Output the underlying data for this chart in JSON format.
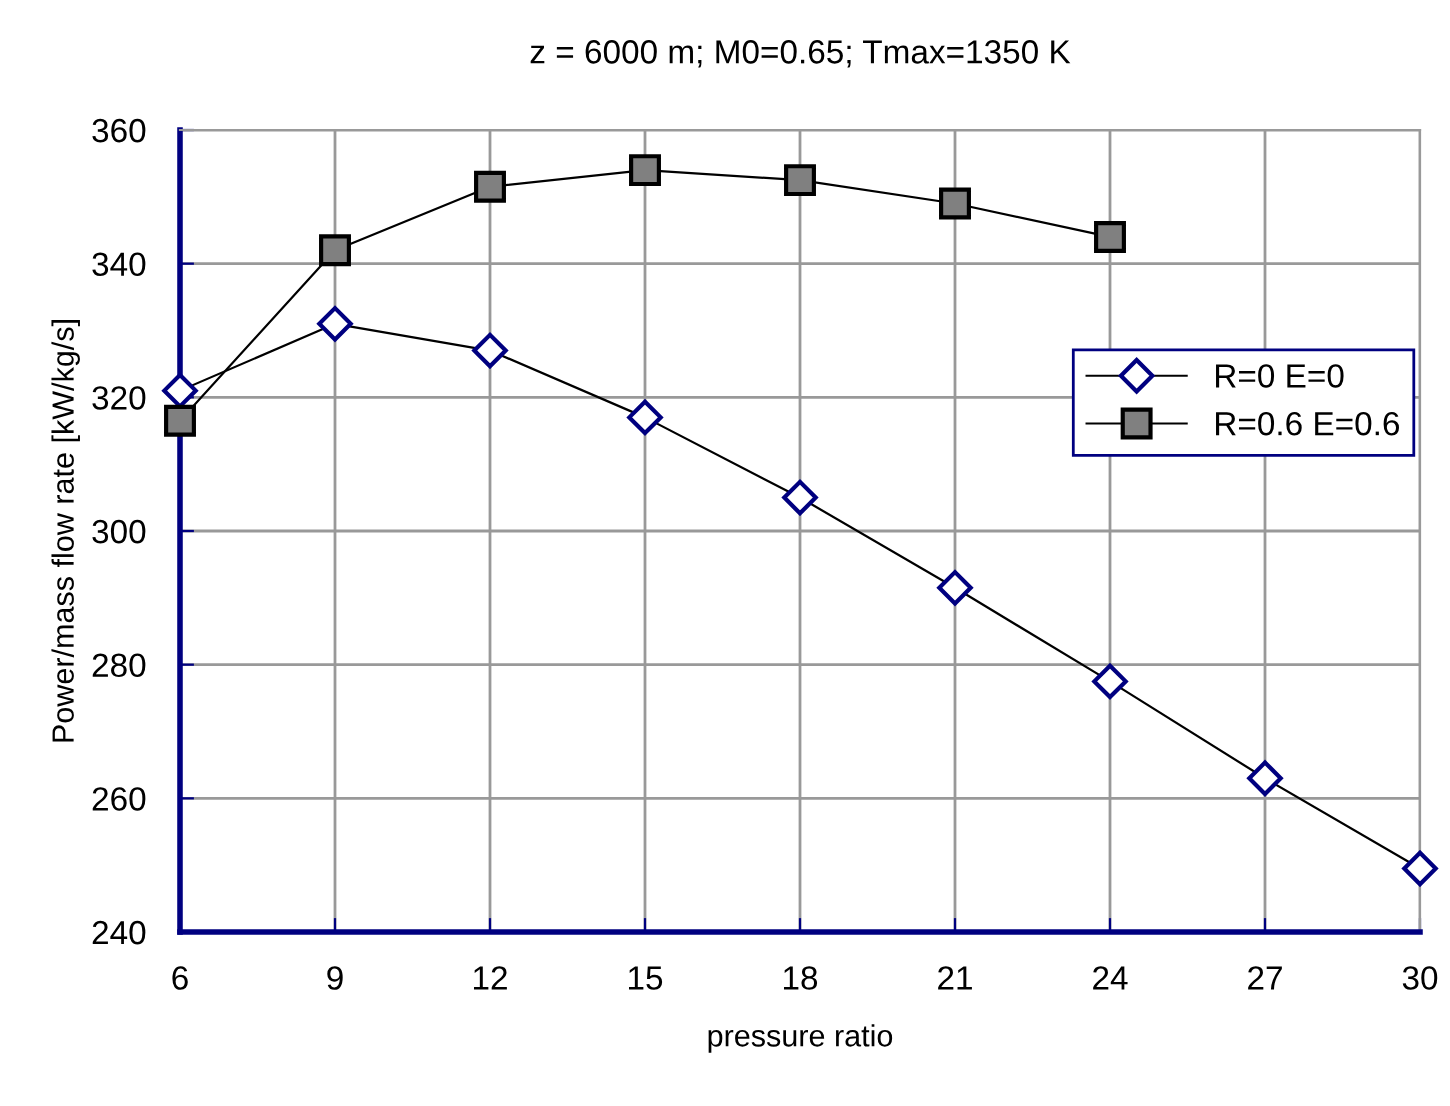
{
  "chart_data": {
    "type": "line",
    "title": "z = 6000 m; M0=0.65; Tmax=1350 K",
    "xlabel": "pressure ratio",
    "ylabel": "Power/mass flow rate [kW/kg/s]",
    "x": [
      6,
      9,
      12,
      15,
      18,
      21,
      24,
      27,
      30
    ],
    "series": [
      {
        "name": "R=0 E=0",
        "color": "#000080",
        "marker": "diamond",
        "values": [
          321,
          331,
          327,
          317,
          305,
          291.5,
          277.5,
          263,
          249.5
        ]
      },
      {
        "name": "R=0.6 E=0.6",
        "color": "#808080",
        "marker": "square",
        "values": [
          316.5,
          342,
          351.5,
          354,
          352.5,
          349,
          344,
          null,
          null
        ]
      }
    ],
    "xlim": [
      6,
      30
    ],
    "xticks": [
      6,
      9,
      12,
      15,
      18,
      21,
      24,
      27,
      30
    ],
    "ylim": [
      240,
      360
    ],
    "yticks": [
      240,
      260,
      280,
      300,
      320,
      340,
      360
    ],
    "grid": true,
    "legend": "right"
  }
}
